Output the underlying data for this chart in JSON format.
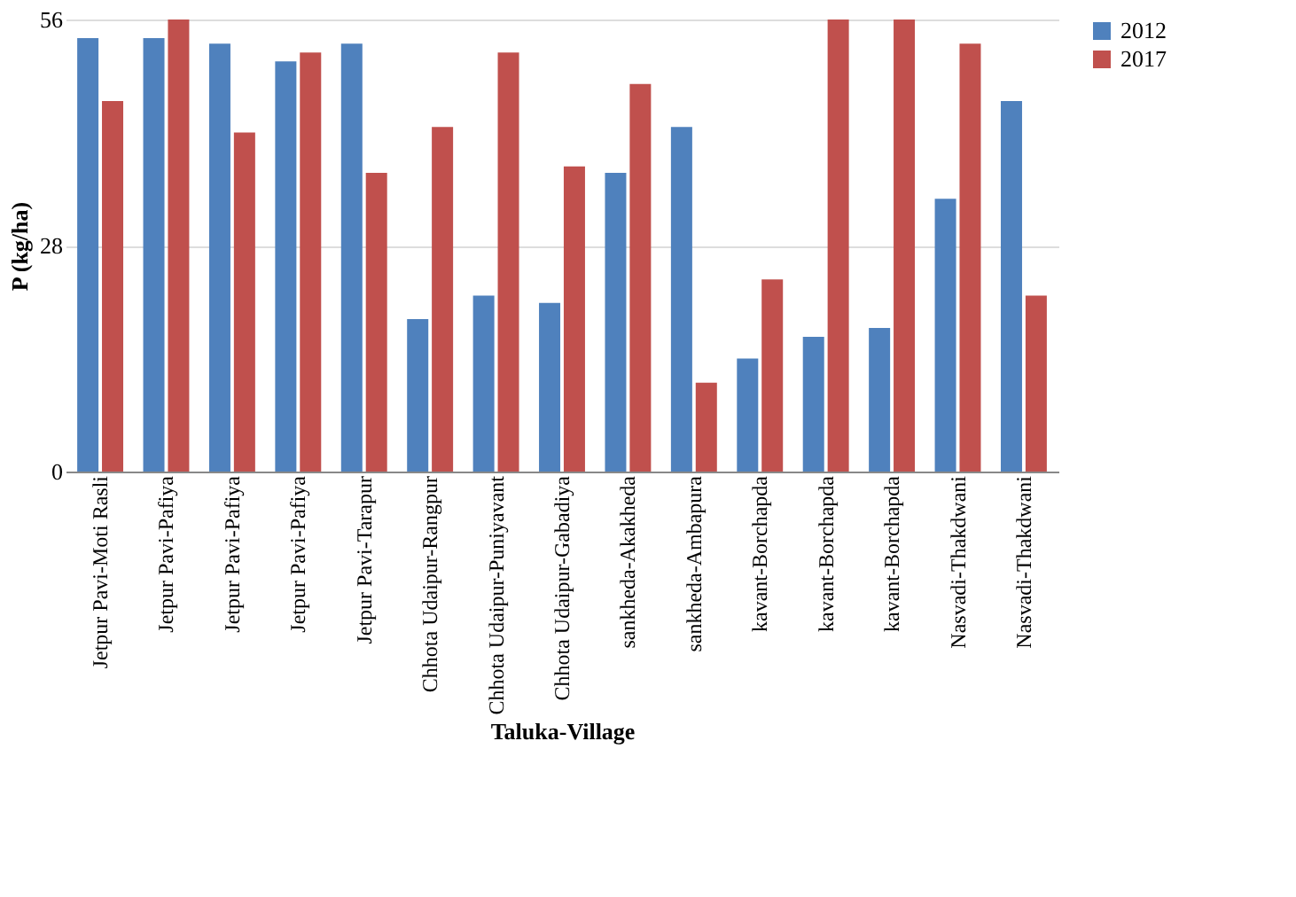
{
  "chart_data": {
    "type": "bar",
    "xlabel": "Taluka-Village",
    "ylabel": "P (kg/ha)",
    "categories": [
      "Jetpur Pavi-Moti Rasli",
      "Jetpur Pavi-Pafiya",
      "Jetpur Pavi-Pafiya",
      "Jetpur Pavi-Pafiya",
      "Jetpur Pavi-Tarapur",
      "Chhota Udaipur-Rangpur",
      "Chhota Udaipur-Puniyavant",
      "Chhota Udaipur-Gabadiya",
      "sankheda-Akakheda",
      "sankheda-Ambapura",
      "kavant-Borchapda",
      "kavant-Borchapda",
      "kavant-Borchapda",
      "Nasvadi-Thakdwani",
      "Nasvadi-Thakdwani"
    ],
    "series": [
      {
        "name": "2012",
        "color": "#4f81bd",
        "values": [
          53.7,
          53.7,
          53,
          50.8,
          53,
          18.9,
          21.8,
          20.9,
          37,
          42.7,
          14,
          16.7,
          17.8,
          33.8,
          45.9
        ]
      },
      {
        "name": "2017",
        "color": "#c0504d",
        "values": [
          45.9,
          56,
          42,
          51.9,
          37,
          42.7,
          51.9,
          37.8,
          48,
          11,
          23.8,
          56,
          56,
          53,
          21.8
        ]
      }
    ],
    "ylim": [
      0,
      56
    ],
    "yticks": [
      0,
      28,
      56
    ],
    "grid": "y",
    "legend": "top right"
  }
}
